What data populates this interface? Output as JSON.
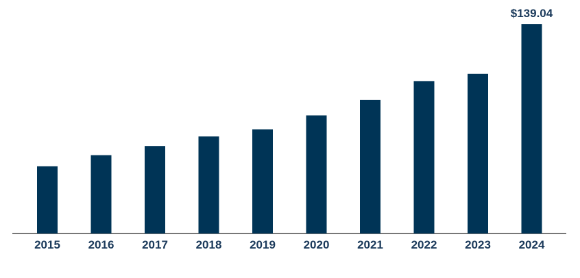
{
  "chart_data": {
    "type": "bar",
    "categories": [
      "2015",
      "2016",
      "2017",
      "2018",
      "2019",
      "2020",
      "2021",
      "2022",
      "2023",
      "2024"
    ],
    "values": [
      44.6,
      52.0,
      58.1,
      64.4,
      69.1,
      78.4,
      88.7,
      101.2,
      106.0,
      139.04
    ],
    "data_labels": [
      "",
      "",
      "",
      "",
      "",
      "",
      "",
      "",
      "",
      "$139.04"
    ],
    "ylim": [
      0,
      155
    ],
    "grid": false,
    "legend": "none",
    "colors": {
      "bar": "#003456",
      "text": "#1b3a5b",
      "axis": "#4a4a4a"
    }
  }
}
